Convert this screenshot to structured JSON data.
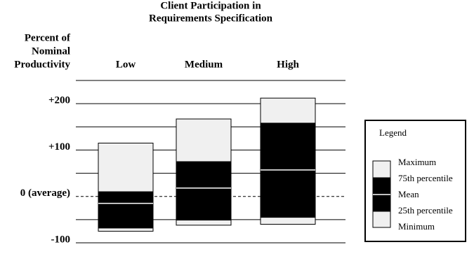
{
  "chart_data": {
    "type": "box",
    "title": [
      "Client Participation in",
      "Requirements Specification"
    ],
    "y_label": [
      "Percent of",
      "Nominal",
      "Productivity"
    ],
    "categories": [
      "Low",
      "Medium",
      "High"
    ],
    "series": [
      {
        "name": "Maximum",
        "values": [
          115,
          167,
          212
        ]
      },
      {
        "name": "75th percentile",
        "values": [
          10,
          75,
          158
        ]
      },
      {
        "name": "Mean",
        "values": [
          -15,
          18,
          57
        ]
      },
      {
        "name": "25th percentile",
        "values": [
          -68,
          -51,
          -45
        ]
      },
      {
        "name": "Minimum",
        "values": [
          -75,
          -62,
          -60
        ]
      }
    ],
    "outer_color": "#f0f0f0",
    "inner_color": "#000000",
    "ylim": [
      -100,
      250
    ],
    "yticks": [
      {
        "value": 200,
        "label": "+200"
      },
      {
        "value": 100,
        "label": "+100"
      },
      {
        "value": 0,
        "label": "0 (average)"
      },
      -100
    ],
    "minor_gridlines": [
      250,
      150,
      50,
      -50
    ],
    "legend_title": "Legend",
    "legend_position": "right"
  }
}
